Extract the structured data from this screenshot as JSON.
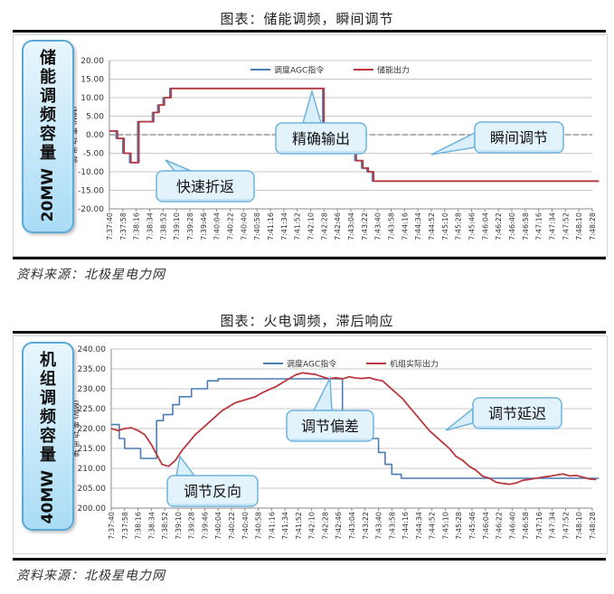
{
  "chart1": {
    "figure_title": "图表：储能调频，瞬间调节",
    "source": "资料来源：北极星电力网",
    "side_label": {
      "chars": [
        "储",
        "能",
        "调",
        "频",
        "容",
        "量"
      ],
      "capacity": "20MW"
    },
    "callouts": {
      "fast_return": "快速折返",
      "precise_output": "精确输出",
      "instant_adjust": "瞬间调节"
    },
    "chart_data": {
      "type": "line",
      "yaxis_label": "(MW) 率 功 出 输",
      "ylim": [
        -20,
        20
      ],
      "yticks": [
        "20.00",
        "15.00",
        "10.00",
        "5.00",
        "0.00",
        "-5.00",
        "-10.00",
        "-15.00",
        "-20.00"
      ],
      "xticks": [
        "7:37:40",
        "7:37:58",
        "7:38:16",
        "7:38:34",
        "7:38:52",
        "7:39:10",
        "7:39:28",
        "7:39:46",
        "7:40:04",
        "7:40:22",
        "7:40:40",
        "7:40:58",
        "7:41:16",
        "7:41:34",
        "7:41:52",
        "7:42:10",
        "7:42:28",
        "7:42:46",
        "7:43:04",
        "7:43:22",
        "7:43:40",
        "7:43:58",
        "7:44:16",
        "7:44:34",
        "7:44:52",
        "7:45:10",
        "7:45:28",
        "7:45:46",
        "7:46:04",
        "7:46:22",
        "7:46:40",
        "7:46:58",
        "7:47:16",
        "7:47:34",
        "7:47:52",
        "7:48:10",
        "7:48:28"
      ],
      "series": [
        {
          "name": "调度AGC指令",
          "color": "#4a7cb5",
          "x": [
            0,
            0.5,
            0.5,
            1,
            1,
            1.5,
            1.5,
            2.1,
            2.1,
            2.6,
            2.6,
            3.2,
            3.2,
            3.6,
            3.6,
            4,
            4,
            4.5,
            4.5,
            5,
            5,
            5.6,
            5.6,
            7,
            7,
            15.9,
            15.9,
            17.4,
            17.4,
            17.8,
            17.8,
            18.3,
            18.3,
            18.8,
            18.8,
            19.2,
            19.2,
            19.6,
            19.6,
            20,
            20,
            20.4,
            20.4,
            21,
            21,
            23,
            23,
            26,
            26,
            36.5
          ],
          "values": [
            1,
            1,
            -1,
            -1,
            -5,
            -5,
            -7.5,
            -7.5,
            3.5,
            3.5,
            3.5,
            3.5,
            6,
            6,
            8,
            8,
            10,
            10,
            12.5,
            12.5,
            12.5,
            12.5,
            12.5,
            12.5,
            12.5,
            12.5,
            3,
            3,
            -1,
            -1,
            -4,
            -4,
            -7,
            -7,
            -9,
            -9,
            -10,
            -10,
            -12.5,
            -12.5,
            -12.5,
            -12.5,
            -12.5,
            -12.5,
            -12.5,
            -12.5,
            -12.5,
            -12.5,
            -12.5,
            -12.5
          ]
        },
        {
          "name": "储能出力",
          "color": "#b8393f",
          "x": [
            0,
            0.6,
            0.6,
            1.1,
            1.1,
            1.6,
            1.6,
            2.2,
            2.2,
            2.7,
            2.7,
            3.3,
            3.3,
            3.7,
            3.7,
            4.1,
            4.1,
            4.6,
            4.6,
            5.1,
            5.1,
            16,
            16,
            17.5,
            17.5,
            17.9,
            17.9,
            18.4,
            18.4,
            18.9,
            18.9,
            19.3,
            19.3,
            19.7,
            19.7,
            36.5
          ],
          "values": [
            1,
            1,
            -1,
            -1,
            -5,
            -5,
            -7.5,
            -7.5,
            3.5,
            3.5,
            3.5,
            3.5,
            6,
            6,
            8,
            8,
            10,
            10,
            12.5,
            12.5,
            12.5,
            12.5,
            3,
            3,
            -1,
            -1,
            -4,
            -4,
            -7,
            -7,
            -9,
            -9,
            -10,
            -10,
            -12.5,
            -12.5
          ]
        }
      ]
    }
  },
  "chart2": {
    "figure_title": "图表：火电调频，滞后响应",
    "source": "资料来源：北极星电力网",
    "side_label": {
      "chars": [
        "机",
        "组",
        "调",
        "频",
        "容",
        "量"
      ],
      "capacity": "40MW"
    },
    "callouts": {
      "regulation_bias": "调节偏差",
      "regulation_delay": "调节延迟",
      "regulation_reverse": "调节反向"
    },
    "chart_data": {
      "type": "line",
      "yaxis_label": "(MW) 率 功 出 输",
      "ylim": [
        200,
        240
      ],
      "yticks": [
        "240.00",
        "235.00",
        "230.00",
        "225.00",
        "220.00",
        "215.00",
        "210.00",
        "205.00",
        "200.00"
      ],
      "xticks": [
        "7:37:40",
        "7:37:58",
        "7:38:16",
        "7:38:34",
        "7:38:52",
        "7:39:10",
        "7:39:28",
        "7:39:46",
        "7:40:04",
        "7:40:22",
        "7:40:40",
        "7:40:58",
        "7:41:16",
        "7:41:34",
        "7:41:52",
        "7:42:10",
        "7:42:28",
        "7:42:46",
        "7:43:04",
        "7:43:22",
        "7:43:40",
        "7:43:58",
        "7:44:16",
        "7:44:34",
        "7:44:52",
        "7:45:10",
        "7:45:28",
        "7:45:46",
        "7:46:04",
        "7:46:22",
        "7:46:40",
        "7:46:58",
        "7:47:16",
        "7:47:34",
        "7:47:52",
        "7:48:10",
        "7:48:28"
      ],
      "series": [
        {
          "name": "调度AGC指令",
          "color": "#4a7cb5",
          "x": [
            0,
            0.6,
            0.6,
            1,
            1,
            1.5,
            1.5,
            2.2,
            2.2,
            2.7,
            2.7,
            3.4,
            3.4,
            3.9,
            3.9,
            4.6,
            4.6,
            5.1,
            5.1,
            6,
            6,
            7.2,
            7.2,
            8,
            8,
            17.3,
            17.3,
            18.2,
            18.2,
            19.5,
            19.5,
            20,
            20,
            20.5,
            20.5,
            21,
            21,
            21.7,
            21.7,
            22.2,
            22.2,
            36.5
          ],
          "values": [
            221,
            221,
            217.5,
            217.5,
            215,
            215,
            215,
            215,
            212.5,
            212.5,
            212.5,
            212.5,
            222,
            222,
            223.5,
            223.5,
            226,
            226,
            228,
            228,
            230,
            230,
            232,
            232,
            232.5,
            232.5,
            223,
            223,
            221,
            221,
            217.5,
            217.5,
            214,
            214,
            211,
            211,
            208.5,
            208.5,
            207.5,
            207.5,
            207.5,
            207.5
          ]
        },
        {
          "name": "机组实际出力",
          "color": "#b8393f",
          "x": [
            0,
            0.5,
            1,
            1.5,
            2,
            2.5,
            3,
            3.4,
            3.8,
            4.3,
            4.8,
            5.3,
            5.8,
            6.3,
            6.8,
            7.3,
            7.8,
            8.3,
            8.8,
            9.3,
            9.8,
            10.3,
            10.8,
            11.3,
            11.8,
            12.3,
            12.8,
            13.3,
            13.8,
            14.3,
            14.8,
            15.3,
            15.8,
            16.3,
            16.8,
            17.3,
            17.8,
            18.3,
            18.8,
            19.3,
            19.8,
            20.3,
            20.8,
            21.3,
            21.8,
            22.3,
            22.8,
            23.3,
            23.8,
            24.3,
            24.8,
            25.3,
            25.8,
            26.3,
            26.8,
            27.3,
            27.8,
            28.3,
            28.8,
            29.3,
            29.8,
            30.3,
            30.8,
            31.3,
            31.8,
            32.3,
            32.8,
            33.3,
            33.8,
            34.3,
            34.8,
            35.3,
            35.8,
            36.3
          ],
          "values": [
            220,
            219.5,
            220,
            220.2,
            219.5,
            218.5,
            216,
            213.5,
            211,
            210.5,
            212,
            214.5,
            216.5,
            218.5,
            220,
            221.5,
            223,
            224.5,
            225.5,
            226.5,
            227,
            227.5,
            228,
            229,
            229.8,
            230.5,
            231.5,
            232.5,
            233.5,
            234,
            233.8,
            233.6,
            233,
            232.5,
            232.8,
            232.5,
            233,
            232.7,
            232.6,
            232.8,
            232.3,
            232,
            230.5,
            229,
            227.5,
            225.5,
            223.5,
            221.5,
            219.5,
            218,
            216.5,
            215,
            213,
            212,
            210.5,
            209.5,
            208,
            207.5,
            206.5,
            206.2,
            206,
            206.3,
            207,
            207.2,
            207.5,
            207.8,
            208,
            208.3,
            208.6,
            208.1,
            208.2,
            207.8,
            207.3,
            207.2
          ]
        }
      ]
    }
  }
}
